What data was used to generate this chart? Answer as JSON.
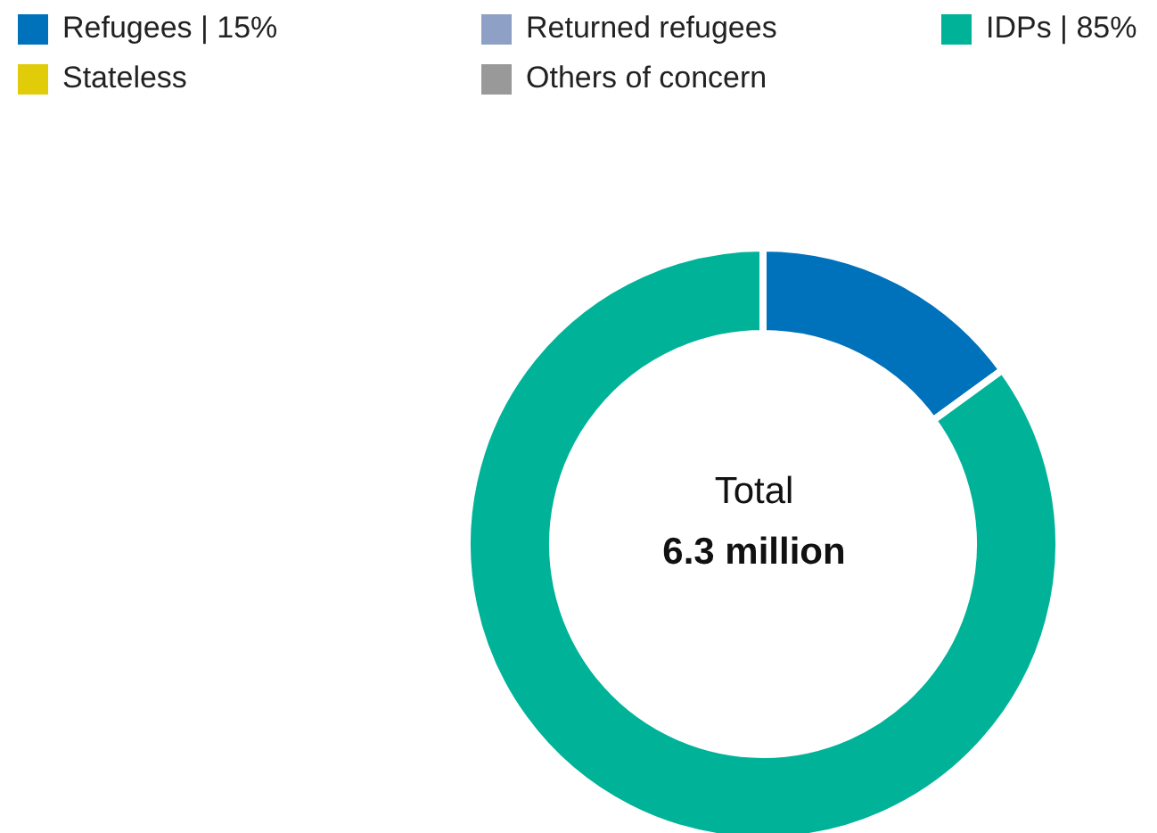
{
  "chart_data": {
    "type": "donut",
    "categories": [
      "Refugees | 15%",
      "Returned refugees",
      "IDPs | 85%",
      "Stateless",
      "Others of concern"
    ],
    "values": [
      15,
      0,
      85,
      0,
      0
    ],
    "colors": [
      "#0072bc",
      "#8ea0c6",
      "#00b398",
      "#e1cc0a",
      "#999999"
    ],
    "annotations": [
      "Total",
      "6.3 million"
    ],
    "legend": "top"
  }
}
